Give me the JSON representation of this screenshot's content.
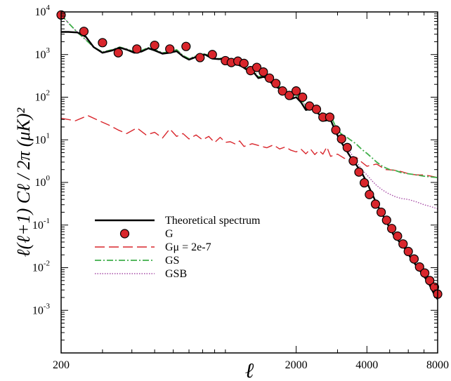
{
  "chart_data": {
    "type": "line",
    "title": "",
    "xlabel": "ℓ",
    "ylabel": "ℓ(ℓ+1) Cℓ / 2π    (μK)²",
    "xscale": "log",
    "yscale": "log",
    "xlim": [
      200,
      8000
    ],
    "ylim": [
      0.0001,
      10000
    ],
    "x_ticks": [
      {
        "value": 200,
        "label": "200"
      },
      {
        "value": 2000,
        "label": "2000"
      },
      {
        "value": 4000,
        "label": "4000"
      },
      {
        "value": 8000,
        "label": "8000"
      }
    ],
    "y_ticks": [
      {
        "value": 10000,
        "base": "10",
        "exp": "4"
      },
      {
        "value": 1000,
        "base": "10",
        "exp": "3"
      },
      {
        "value": 100,
        "base": "10",
        "exp": "2"
      },
      {
        "value": 10,
        "base": "10",
        "exp": "1"
      },
      {
        "value": 1,
        "base": "10",
        "exp": "0"
      },
      {
        "value": 0.1,
        "base": "10",
        "exp": "-1"
      },
      {
        "value": 0.01,
        "base": "10",
        "exp": "-2"
      },
      {
        "value": 0.001,
        "base": "10",
        "exp": "-3"
      }
    ],
    "grid": false,
    "legend_position": "lower-left",
    "series": [
      {
        "name": "Theoretical spectrum",
        "style": "solid",
        "color": "#000000",
        "x": [
          200,
          215,
          235,
          255,
          275,
          300,
          330,
          355,
          380,
          410,
          440,
          470,
          500,
          540,
          580,
          620,
          660,
          700,
          760,
          820,
          880,
          940,
          1000,
          1060,
          1120,
          1180,
          1240,
          1300,
          1380,
          1460,
          1540,
          1620,
          1700,
          1800,
          1900,
          2000,
          2100,
          2200,
          2350,
          2500,
          2650,
          2800,
          2950,
          3100,
          3250,
          3400,
          3600,
          3800,
          4000,
          4200,
          4400,
          4600,
          4800,
          5000,
          5200,
          5500,
          5800,
          6100,
          6500,
          6900,
          7300,
          7700,
          8000
        ],
        "y": [
          3400,
          3400,
          3300,
          2600,
          1500,
          1100,
          1250,
          1450,
          1300,
          1100,
          1180,
          1400,
          1250,
          1050,
          1100,
          1200,
          900,
          760,
          900,
          1000,
          800,
          780,
          820,
          560,
          590,
          520,
          430,
          420,
          280,
          300,
          240,
          180,
          160,
          120,
          90,
          100,
          75,
          50,
          55,
          40,
          28,
          30,
          15,
          9,
          6,
          4,
          2.6,
          1.7,
          1.0,
          0.55,
          0.32,
          0.2,
          0.13,
          0.085,
          0.058,
          0.04,
          0.028,
          0.018,
          0.011,
          0.007,
          0.0045,
          0.0025,
          0.0018
        ]
      },
      {
        "name": "G",
        "style": "markers",
        "color": "#d9262c",
        "x": [
          200,
          250,
          300,
          350,
          420,
          500,
          580,
          680,
          780,
          880,
          1000,
          1060,
          1130,
          1200,
          1280,
          1360,
          1450,
          1540,
          1640,
          1750,
          1870,
          2000,
          2130,
          2280,
          2440,
          2600,
          2780,
          2950,
          3120,
          3300,
          3500,
          3700,
          3900,
          4100,
          4350,
          4600,
          4850,
          5100,
          5400,
          5700,
          6000,
          6350,
          6700,
          7050,
          7400,
          7750,
          8000
        ],
        "y": [
          8500,
          3500,
          1900,
          1100,
          1350,
          1650,
          1350,
          1550,
          850,
          1000,
          720,
          650,
          700,
          620,
          420,
          500,
          390,
          280,
          210,
          140,
          110,
          140,
          100,
          62,
          52,
          34,
          34,
          17,
          10.5,
          6.6,
          3.2,
          1.75,
          0.98,
          0.52,
          0.31,
          0.2,
          0.13,
          0.083,
          0.055,
          0.036,
          0.024,
          0.016,
          0.0104,
          0.0075,
          0.005,
          0.0035,
          0.0024
        ]
      },
      {
        "name": "Gμ = 2e-7",
        "style": "dashed",
        "color": "#d9262c",
        "x": [
          200,
          230,
          260,
          290,
          320,
          350,
          380,
          420,
          460,
          500,
          540,
          580,
          620,
          660,
          700,
          750,
          800,
          850,
          900,
          950,
          1000,
          1050,
          1100,
          1150,
          1200,
          1300,
          1400,
          1500,
          1600,
          1700,
          1800,
          1900,
          2000,
          2100,
          2200,
          2300,
          2400,
          2500,
          2600,
          2700,
          2800,
          3000,
          3200,
          3400,
          3600,
          3800,
          4000,
          4400,
          4800,
          5200,
          5600,
          6000,
          6500,
          7000,
          7500,
          8000
        ],
        "y": [
          32,
          28,
          37,
          28,
          22,
          17,
          14,
          19,
          13,
          15,
          11,
          18,
          12,
          14,
          10.5,
          13,
          10,
          12,
          8.6,
          11.4,
          8.7,
          9,
          8,
          9.4,
          7,
          8.1,
          7.2,
          6.5,
          7.6,
          6.1,
          6.8,
          5.7,
          5.2,
          6,
          4.7,
          6.1,
          4.5,
          5.6,
          4.6,
          6.8,
          4.1,
          4.6,
          3.7,
          3.4,
          3.9,
          3.0,
          2.4,
          2.7,
          2.0,
          1.95,
          1.8,
          1.6,
          1.5,
          1.5,
          1.4,
          1.3
        ]
      },
      {
        "name": "GS",
        "style": "dashdot",
        "color": "#3fae49",
        "x": [
          200,
          215,
          235,
          255,
          275,
          300,
          330,
          355,
          380,
          410,
          440,
          470,
          500,
          540,
          580,
          620,
          660,
          700,
          760,
          820,
          880,
          940,
          1000,
          1060,
          1120,
          1180,
          1240,
          1300,
          1380,
          1460,
          1540,
          1620,
          1700,
          1800,
          1900,
          2000,
          2100,
          2200,
          2350,
          2500,
          2650,
          2800,
          2950,
          3100,
          3250,
          3400,
          3600,
          3800,
          4000,
          4200,
          4400,
          4600,
          4800,
          5000,
          5300,
          5600,
          6000,
          6500,
          7000,
          7500,
          8000
        ],
        "y": [
          8500,
          5500,
          3300,
          2200,
          1500,
          1150,
          1300,
          1500,
          1350,
          1150,
          1250,
          1450,
          1300,
          1100,
          1150,
          1300,
          950,
          800,
          950,
          1050,
          850,
          800,
          850,
          600,
          620,
          550,
          460,
          450,
          300,
          320,
          260,
          200,
          175,
          135,
          105,
          115,
          88,
          62,
          65,
          50,
          36,
          38,
          20,
          14,
          12,
          10,
          8,
          6,
          4.8,
          3.8,
          3.0,
          2.5,
          2.2,
          2.0,
          1.9,
          1.7,
          1.6,
          1.5,
          1.4,
          1.35,
          1.3
        ]
      },
      {
        "name": "GSB",
        "style": "dotted",
        "color": "#a64ca6",
        "x": [
          200,
          215,
          235,
          255,
          275,
          300,
          330,
          355,
          380,
          410,
          440,
          470,
          500,
          540,
          580,
          620,
          660,
          700,
          760,
          820,
          880,
          940,
          1000,
          1060,
          1120,
          1180,
          1240,
          1300,
          1380,
          1460,
          1540,
          1620,
          1700,
          1800,
          1900,
          2000,
          2100,
          2200,
          2350,
          2500,
          2650,
          2800,
          2950,
          3100,
          3250,
          3400,
          3600,
          3800,
          4000,
          4200,
          4400,
          4600,
          4800,
          5000,
          5300,
          5600,
          6000,
          6500,
          7000,
          7500,
          8000
        ],
        "y": [
          8500,
          5500,
          3300,
          2200,
          1500,
          1150,
          1300,
          1500,
          1350,
          1150,
          1250,
          1450,
          1300,
          1100,
          1150,
          1300,
          950,
          800,
          950,
          1050,
          850,
          800,
          850,
          600,
          620,
          550,
          460,
          450,
          300,
          320,
          260,
          200,
          175,
          135,
          105,
          115,
          88,
          62,
          65,
          50,
          36,
          30,
          16,
          11,
          7,
          5,
          3.2,
          2.0,
          1.5,
          1.1,
          0.85,
          0.7,
          0.6,
          0.53,
          0.46,
          0.42,
          0.4,
          0.35,
          0.3,
          0.27,
          0.24
        ]
      }
    ]
  }
}
